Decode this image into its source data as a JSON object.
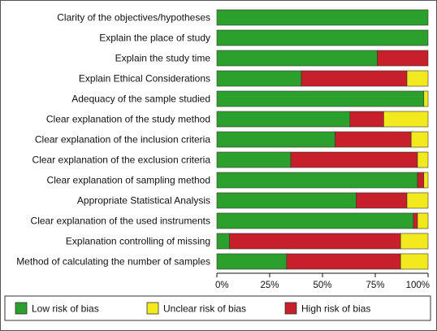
{
  "chart_data": {
    "type": "bar",
    "orientation": "horizontal",
    "stacked": true,
    "categories": [
      "Clarity of the objectives/hypotheses",
      "Explain the place of study",
      "Explain the study time",
      "Explain Ethical Considerations",
      "Adequacy of the sample studied",
      "Clear explanation of the study method",
      "Clear explanation of the inclusion criteria",
      "Clear explanation of the exclusion criteria",
      "Clear explanation of sampling method",
      "Appropriate Statistical Analysis",
      "Clear explanation of the used instruments",
      "Explanation controlling of missing",
      "Method of calculating the number of samples"
    ],
    "series": [
      {
        "name": "Low risk of bias",
        "color": "#2ca02c",
        "values": [
          100,
          100,
          76,
          40,
          98,
          63,
          56,
          35,
          95,
          66,
          93,
          6,
          33
        ]
      },
      {
        "name": "Unclear risk of bias",
        "color": "#f2ea1c",
        "values": [
          0,
          0,
          0,
          10,
          2,
          21,
          8,
          5,
          2,
          10,
          5,
          13,
          13
        ]
      },
      {
        "name": "High risk of bias",
        "color": "#c8202a",
        "values": [
          0,
          0,
          24,
          50,
          0,
          16,
          36,
          60,
          3,
          24,
          2,
          81,
          54
        ]
      }
    ],
    "xticks": [
      "0%",
      "25%",
      "50%",
      "75%",
      "100%"
    ],
    "xlim": [
      0,
      100
    ],
    "legend_position": "bottom",
    "grid": false
  }
}
